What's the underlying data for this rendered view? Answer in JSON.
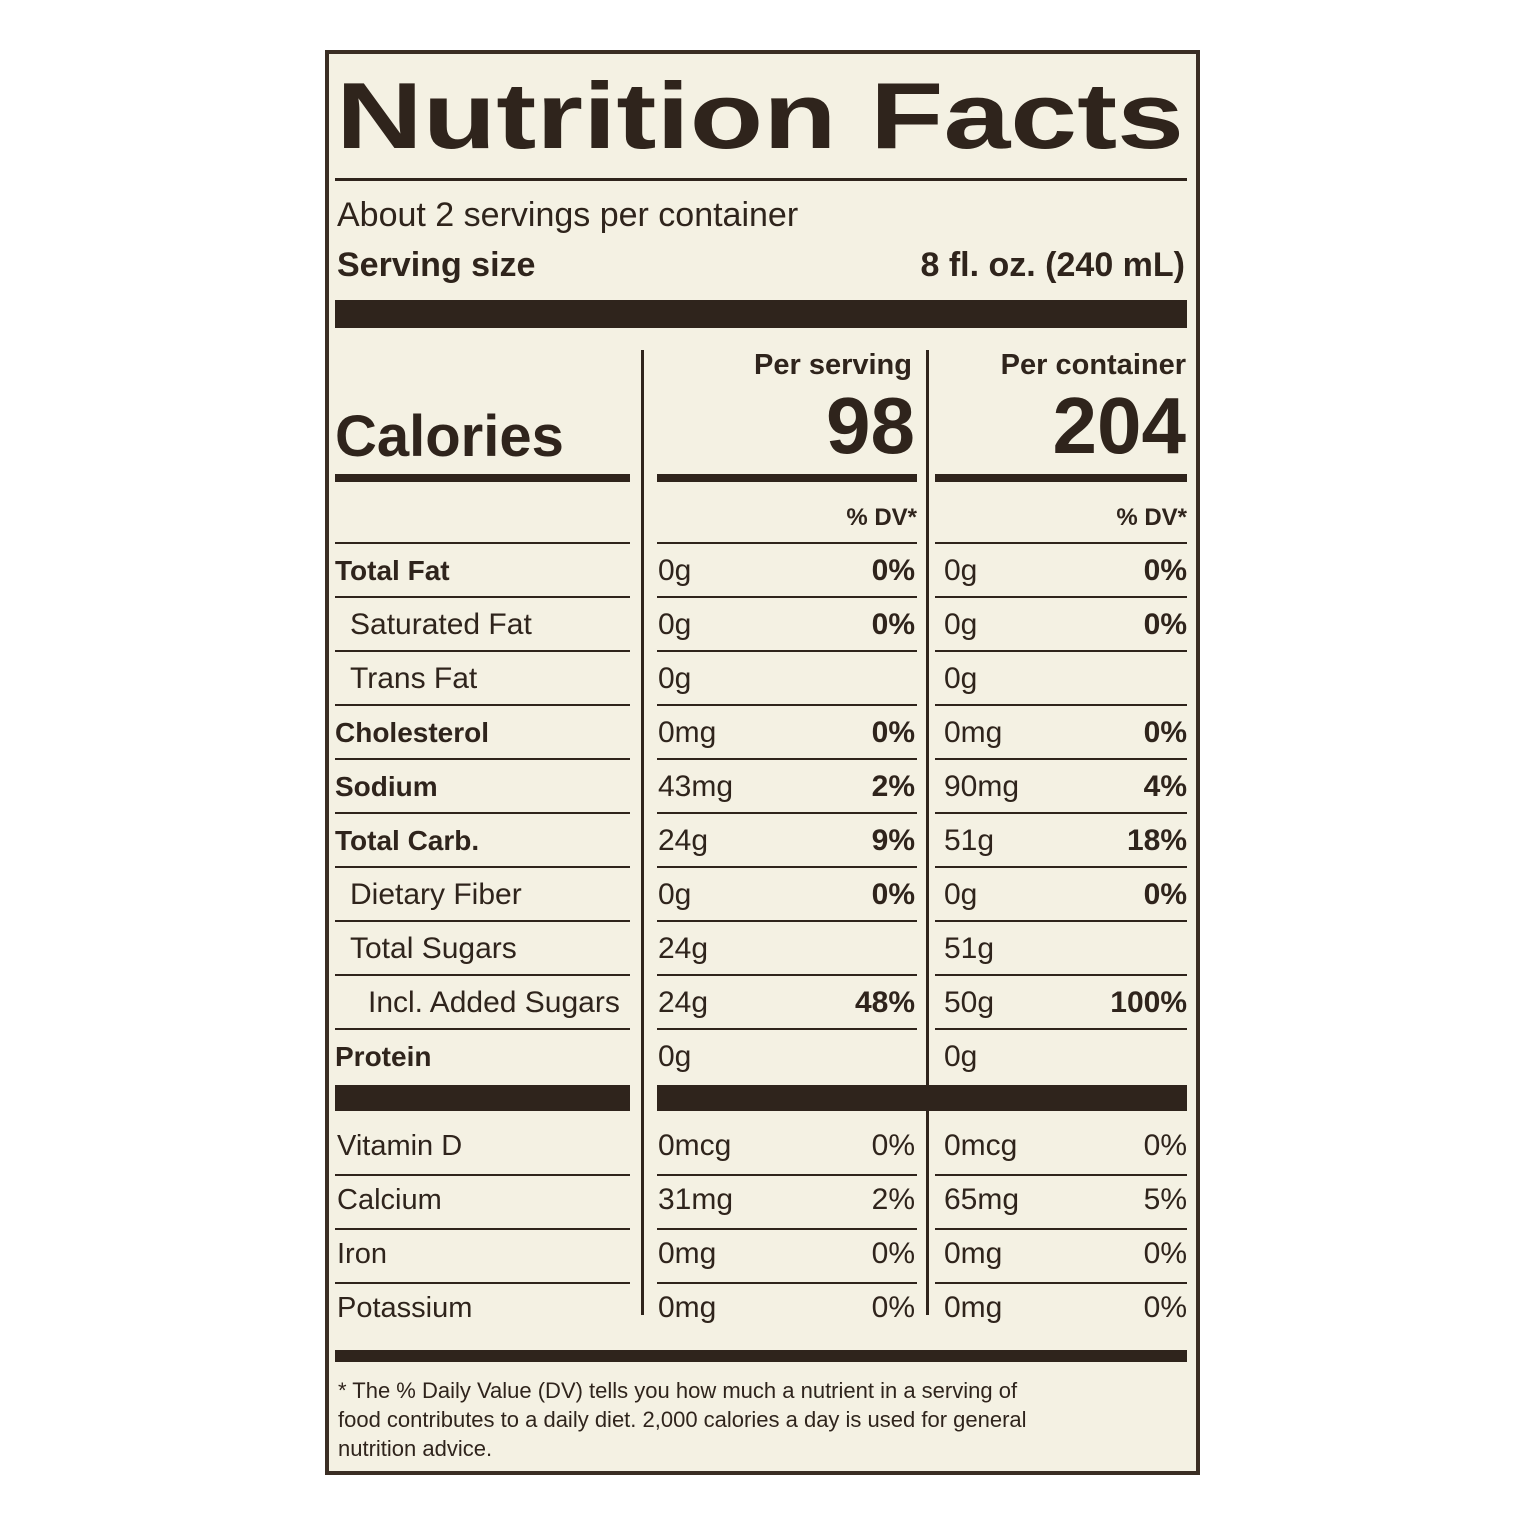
{
  "title": "Nutrition Facts",
  "servings": "About 2 servings per container",
  "serving_size": {
    "label": "Serving size",
    "value": "8 fl. oz. (240 mL)"
  },
  "columns": [
    "Per serving",
    "Per container"
  ],
  "calories": {
    "label": "Calories",
    "serving": "98",
    "container": "204"
  },
  "dv_header": "% DV*",
  "nutrients": [
    {
      "name": "Total Fat",
      "bold": true,
      "indent": 0,
      "serving": {
        "amount": "0g",
        "dv": "0%"
      },
      "container": {
        "amount": "0g",
        "dv": "0%"
      }
    },
    {
      "name": "Saturated Fat",
      "bold": false,
      "indent": 1,
      "serving": {
        "amount": "0g",
        "dv": "0%"
      },
      "container": {
        "amount": "0g",
        "dv": "0%"
      }
    },
    {
      "name": "Trans Fat",
      "bold": false,
      "indent": 1,
      "serving": {
        "amount": "0g"
      },
      "container": {
        "amount": "0g"
      }
    },
    {
      "name": "Cholesterol",
      "bold": true,
      "indent": 0,
      "serving": {
        "amount": "0mg",
        "dv": "0%"
      },
      "container": {
        "amount": "0mg",
        "dv": "0%"
      }
    },
    {
      "name": "Sodium",
      "bold": true,
      "indent": 0,
      "serving": {
        "amount": "43mg",
        "dv": "2%"
      },
      "container": {
        "amount": "90mg",
        "dv": "4%"
      }
    },
    {
      "name": "Total Carb.",
      "bold": true,
      "indent": 0,
      "serving": {
        "amount": "24g",
        "dv": "9%"
      },
      "container": {
        "amount": "51g",
        "dv": "18%"
      }
    },
    {
      "name": "Dietary Fiber",
      "bold": false,
      "indent": 1,
      "serving": {
        "amount": "0g",
        "dv": "0%"
      },
      "container": {
        "amount": "0g",
        "dv": "0%"
      }
    },
    {
      "name": "Total Sugars",
      "bold": false,
      "indent": 1,
      "serving": {
        "amount": "24g"
      },
      "container": {
        "amount": "51g"
      }
    },
    {
      "name": "Incl. Added Sugars",
      "bold": false,
      "indent": 2,
      "serving": {
        "amount": "24g",
        "dv": "48%"
      },
      "container": {
        "amount": "50g",
        "dv": "100%"
      }
    },
    {
      "name": "Protein",
      "bold": true,
      "indent": 0,
      "serving": {
        "amount": "0g"
      },
      "container": {
        "amount": "0g"
      }
    }
  ],
  "vitamins": [
    {
      "name": "Vitamin D",
      "serving": {
        "amount": "0mcg",
        "dv": "0%"
      },
      "container": {
        "amount": "0mcg",
        "dv": "0%"
      }
    },
    {
      "name": "Calcium",
      "serving": {
        "amount": "31mg",
        "dv": "2%"
      },
      "container": {
        "amount": "65mg",
        "dv": "5%"
      }
    },
    {
      "name": "Iron",
      "serving": {
        "amount": "0mg",
        "dv": "0%"
      },
      "container": {
        "amount": "0mg",
        "dv": "0%"
      }
    },
    {
      "name": "Potassium",
      "serving": {
        "amount": "0mg",
        "dv": "0%"
      },
      "container": {
        "amount": "0mg",
        "dv": "0%"
      }
    }
  ],
  "footnote": [
    "* The % Daily Value (DV) tells you how much a nutrient in a serving of",
    "food contributes to a daily diet. 2,000 calories a day is used for general",
    "nutrition advice."
  ]
}
